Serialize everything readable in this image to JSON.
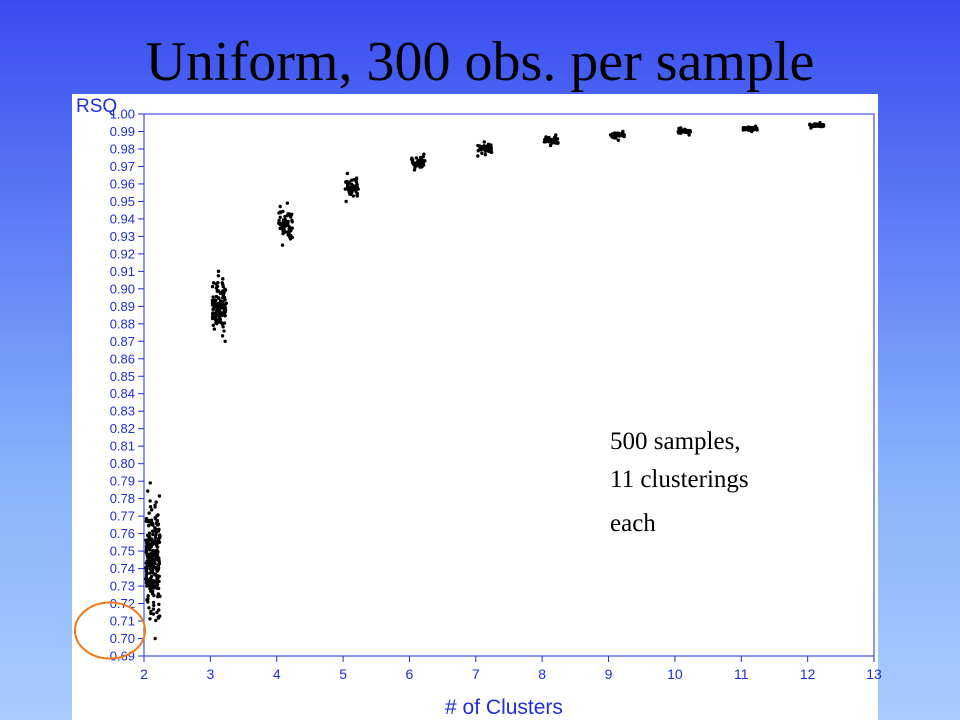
{
  "slide": {
    "title": "Uniform, 300 obs. per sample"
  },
  "chart_data": {
    "type": "scatter",
    "title": "Uniform, 300 obs. per sample",
    "ylabel": "RSQ",
    "xlabel": "# of Clusters",
    "xlim": [
      2,
      13
    ],
    "ylim": [
      0.69,
      1.0
    ],
    "x_ticks": [
      2,
      3,
      4,
      5,
      6,
      7,
      8,
      9,
      10,
      11,
      12,
      13
    ],
    "y_ticks": [
      "0.69",
      "0.70",
      "0.71",
      "0.72",
      "0.73",
      "0.74",
      "0.75",
      "0.76",
      "0.77",
      "0.78",
      "0.79",
      "0.80",
      "0.81",
      "0.82",
      "0.83",
      "0.84",
      "0.85",
      "0.86",
      "0.87",
      "0.88",
      "0.89",
      "0.90",
      "0.91",
      "0.92",
      "0.93",
      "0.94",
      "0.95",
      "0.96",
      "0.97",
      "0.98",
      "0.99",
      "1.00"
    ],
    "grid": false,
    "legend": null,
    "marker_color": "#000000",
    "axis_color": "#1f2fd6",
    "clusters": [
      {
        "x": 2,
        "y_min": 0.7,
        "y_max": 0.789,
        "y_center": 0.75
      },
      {
        "x": 3,
        "y_min": 0.87,
        "y_max": 0.91,
        "y_center": 0.891
      },
      {
        "x": 4,
        "y_min": 0.925,
        "y_max": 0.949,
        "y_center": 0.937
      },
      {
        "x": 5,
        "y_min": 0.95,
        "y_max": 0.966,
        "y_center": 0.96
      },
      {
        "x": 6,
        "y_min": 0.968,
        "y_max": 0.977,
        "y_center": 0.972
      },
      {
        "x": 7,
        "y_min": 0.976,
        "y_max": 0.984,
        "y_center": 0.98
      },
      {
        "x": 8,
        "y_min": 0.982,
        "y_max": 0.988,
        "y_center": 0.985
      },
      {
        "x": 9,
        "y_min": 0.985,
        "y_max": 0.99,
        "y_center": 0.988
      },
      {
        "x": 10,
        "y_min": 0.988,
        "y_max": 0.992,
        "y_center": 0.99
      },
      {
        "x": 11,
        "y_min": 0.99,
        "y_max": 0.993,
        "y_center": 0.992
      },
      {
        "x": 12,
        "y_min": 0.992,
        "y_max": 0.995,
        "y_center": 0.994
      }
    ],
    "annotation": [
      "500 samples,",
      "11 clusterings",
      "each"
    ],
    "highlight": {
      "shape": "ellipse",
      "color": "#f07a1e",
      "y_range": [
        0.69,
        0.71
      ]
    }
  }
}
